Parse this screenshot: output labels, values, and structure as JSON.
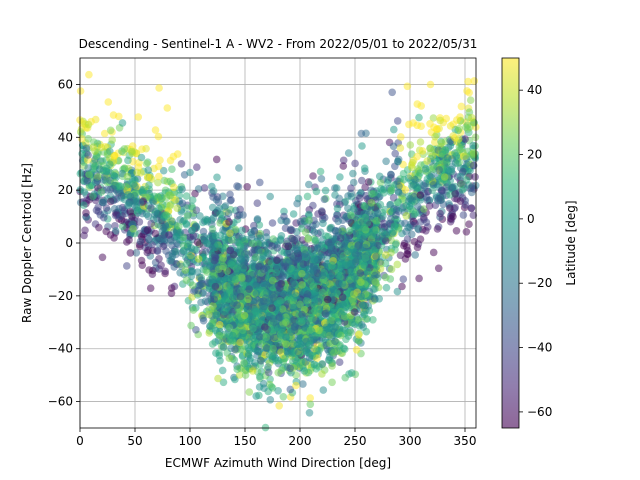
{
  "chart_data": {
    "type": "scatter",
    "title": "Descending - Sentinel-1 A - WV2 - From 2022/05/01 to 2022/05/31",
    "xlabel": "ECMWF Azimuth Wind Direction [deg]",
    "ylabel": "Raw Doppler Centroid [Hz]",
    "xlim": [
      0,
      360
    ],
    "ylim": [
      -70,
      70
    ],
    "x_ticks": [
      0,
      50,
      100,
      150,
      200,
      250,
      300,
      350
    ],
    "y_ticks": [
      -60,
      -40,
      -20,
      0,
      20,
      40,
      60
    ],
    "grid": true,
    "marker_alpha": 0.5,
    "colormap": "viridis",
    "colormap_stops": [
      "#440154",
      "#482878",
      "#3e4989",
      "#31688e",
      "#26828e",
      "#1f9e89",
      "#35b779",
      "#6ece58",
      "#b5de2b",
      "#fde725"
    ],
    "colorbar": {
      "label": "Latitude [deg]",
      "range": [
        -65,
        50
      ],
      "ticks": [
        40,
        20,
        0,
        -20,
        -40,
        -60
      ]
    },
    "points_approx_count": 5000,
    "trend": {
      "description": "U-shaped dependence of Doppler on wind direction",
      "x": [
        0,
        30,
        60,
        90,
        120,
        150,
        180,
        200,
        230,
        260,
        290,
        320,
        350,
        360
      ],
      "y": [
        28,
        22,
        15,
        3,
        -12,
        -22,
        -25,
        -22,
        -18,
        -5,
        12,
        25,
        30,
        32
      ]
    }
  }
}
